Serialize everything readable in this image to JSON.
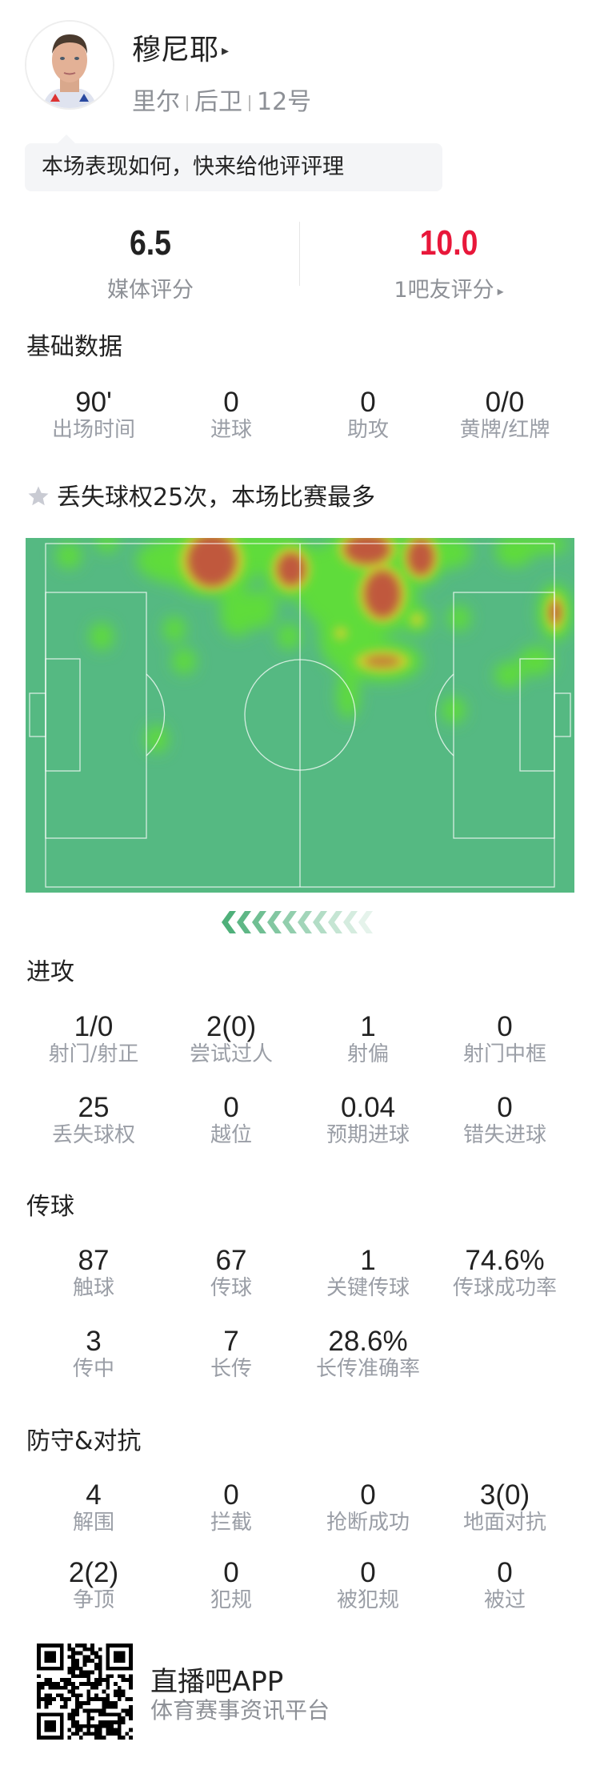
{
  "player": {
    "name": "穆尼耶",
    "name_arrow": "▸",
    "team": "里尔",
    "position": "后卫",
    "number": "12号",
    "avatar_icon": "player-photo"
  },
  "prompt_bubble": "本场表现如何，快来给他评评理",
  "ratings": {
    "media": {
      "value": "6.5",
      "label": "媒体评分"
    },
    "fans": {
      "value": "10.0",
      "label": "1吧友评分",
      "arrow": "▸",
      "color": "#e8173a"
    }
  },
  "basic": {
    "title": "基础数据",
    "items": [
      {
        "value": "90'",
        "label": "出场时间"
      },
      {
        "value": "0",
        "label": "进球"
      },
      {
        "value": "0",
        "label": "助攻"
      },
      {
        "value": "0/0",
        "label": "黄牌/红牌"
      }
    ]
  },
  "highlight": {
    "icon": "star-icon",
    "text": "丢失球权25次，本场比赛最多"
  },
  "heatmap": {
    "pitch_color": "#55b982",
    "direction": "attacking-left"
  },
  "sections": [
    {
      "title": "进攻",
      "rows": [
        [
          {
            "value": "1/0",
            "label": "射门/射正"
          },
          {
            "value": "2(0)",
            "label": "尝试过人"
          },
          {
            "value": "1",
            "label": "射偏"
          },
          {
            "value": "0",
            "label": "射门中框"
          }
        ],
        [
          {
            "value": "25",
            "label": "丢失球权"
          },
          {
            "value": "0",
            "label": "越位"
          },
          {
            "value": "0.04",
            "label": "预期进球"
          },
          {
            "value": "0",
            "label": "错失进球"
          }
        ]
      ]
    },
    {
      "title": "传球",
      "rows": [
        [
          {
            "value": "87",
            "label": "触球"
          },
          {
            "value": "67",
            "label": "传球"
          },
          {
            "value": "1",
            "label": "关键传球"
          },
          {
            "value": "74.6%",
            "label": "传球成功率"
          }
        ],
        [
          {
            "value": "3",
            "label": "传中"
          },
          {
            "value": "7",
            "label": "长传"
          },
          {
            "value": "28.6%",
            "label": "长传准确率"
          }
        ]
      ]
    },
    {
      "title": "防守&对抗",
      "rows": [
        [
          {
            "value": "4",
            "label": "解围"
          },
          {
            "value": "0",
            "label": "拦截"
          },
          {
            "value": "0",
            "label": "抢断成功"
          },
          {
            "value": "3(0)",
            "label": "地面对抗"
          }
        ],
        [
          {
            "value": "2(2)",
            "label": "争顶"
          },
          {
            "value": "0",
            "label": "犯规"
          },
          {
            "value": "0",
            "label": "被犯规"
          },
          {
            "value": "0",
            "label": "被过"
          }
        ]
      ]
    }
  ],
  "footer": {
    "app_name": "直播吧APP",
    "tagline": "体育赛事资讯平台",
    "qr_icon": "qr-code"
  }
}
